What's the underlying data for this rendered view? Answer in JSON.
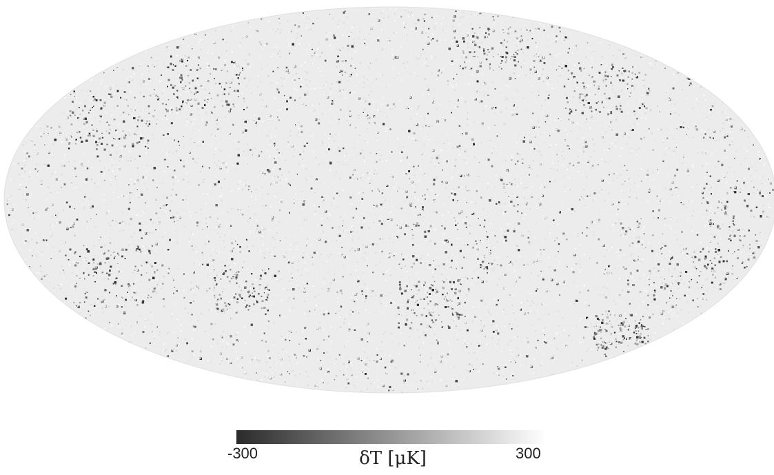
{
  "chart_data": {
    "type": "heatmap",
    "projection": "Mollweide full-sky map",
    "colormap": "grayscale (dark = cold, light = hot)",
    "colorbar": {
      "min": -300,
      "max": 300,
      "min_label": "-300",
      "max_label": "300",
      "label": "δT  [μK]",
      "orientation": "horizontal",
      "placement": "bottom"
    },
    "colors": {
      "low": "#2b2b2b",
      "high": "#ffffff",
      "background": "#ffffff"
    }
  }
}
